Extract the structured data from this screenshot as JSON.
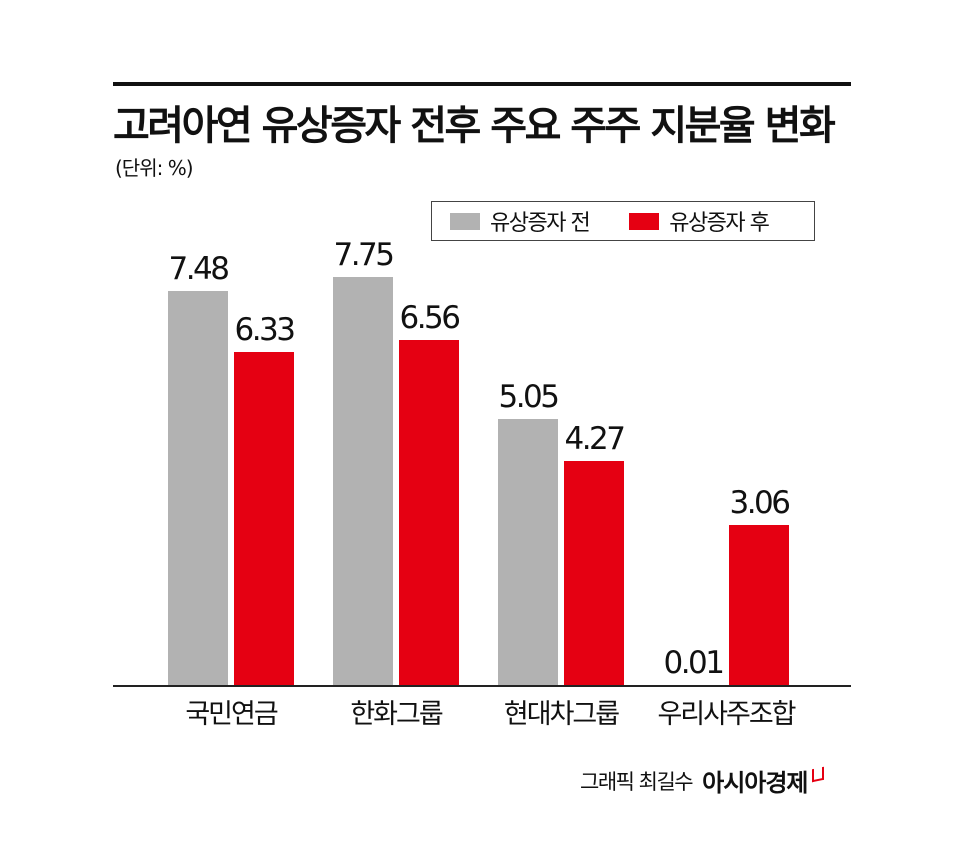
{
  "header": {
    "title": "고려아연 유상증자 전후 주요 주주 지분율 변화",
    "unit": "(단위: %)"
  },
  "legend": {
    "items": [
      {
        "label": "유상증자 전",
        "color": "#b2b2b2"
      },
      {
        "label": "유상증자 후",
        "color": "#e50012"
      }
    ]
  },
  "groups": [
    {
      "label": "국민연금",
      "before": "7.48",
      "after": "6.33"
    },
    {
      "label": "한화그룹",
      "before": "7.75",
      "after": "6.56"
    },
    {
      "label": "현대차그룹",
      "before": "5.05",
      "after": "4.27"
    },
    {
      "label": "우리사주조합",
      "before": "0.01",
      "after": "3.06"
    }
  ],
  "footer": {
    "credit": "그래픽 최길수",
    "brand": "아시아경제"
  },
  "chart_data": {
    "type": "bar",
    "title": "고려아연 유상증자 전후 주요 주주 지분율 변화",
    "subtitle": "(단위: %)",
    "categories": [
      "국민연금",
      "한화그룹",
      "현대차그룹",
      "우리사주조합"
    ],
    "series": [
      {
        "name": "유상증자 전",
        "color": "#b2b2b2",
        "values": [
          7.48,
          7.75,
          5.05,
          0.01
        ]
      },
      {
        "name": "유상증자 후",
        "color": "#e50012",
        "values": [
          6.33,
          6.56,
          4.27,
          3.06
        ]
      }
    ],
    "xlabel": "",
    "ylabel": "",
    "ylim": [
      0,
      7.75
    ],
    "grid": false,
    "legend_position": "top-right",
    "data_labels": true
  }
}
